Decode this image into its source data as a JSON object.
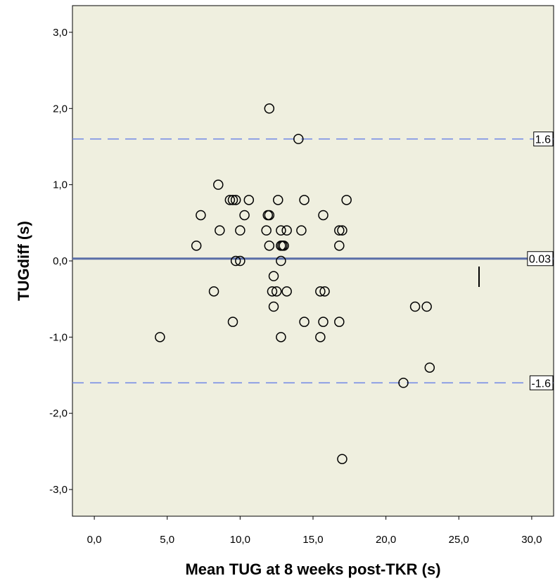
{
  "chart_data": {
    "type": "scatter",
    "title": "",
    "xlabel": "Mean TUG at 8 weeks post-TKR (s)",
    "ylabel": "TUGdiff (s)",
    "xlim": [
      -1.5,
      31.5
    ],
    "ylim": [
      -3.35,
      3.35
    ],
    "x_ticks": [
      0,
      5,
      10,
      15,
      20,
      25,
      30
    ],
    "x_tick_labels": [
      "0,0",
      "5,0",
      "10,0",
      "15,0",
      "20,0",
      "25,0",
      "30,0"
    ],
    "y_ticks": [
      3,
      2,
      1,
      0,
      -1,
      -2,
      -3
    ],
    "y_tick_labels": [
      "3,0",
      "2,0",
      "1,0",
      "0,0",
      "-1,0",
      "-2,0",
      "-3,0"
    ],
    "grid": false,
    "colors": {
      "plot_bg": "#efefdf",
      "mean_line": "#5a6ea8",
      "limit_line": "#6f86e6",
      "marker": "#000000"
    },
    "reference_lines": [
      {
        "name": "upper-limit",
        "y": 1.6,
        "label": "1.6",
        "style": "dashed"
      },
      {
        "name": "mean",
        "y": 0.03,
        "label": "0.03",
        "style": "solid"
      },
      {
        "name": "lower-limit",
        "y": -1.6,
        "label": "-1.6",
        "style": "dashed"
      }
    ],
    "points": [
      {
        "x": 12.0,
        "y": 2.0
      },
      {
        "x": 14.0,
        "y": 1.6
      },
      {
        "x": 8.5,
        "y": 1.0
      },
      {
        "x": 9.3,
        "y": 0.8
      },
      {
        "x": 9.5,
        "y": 0.8
      },
      {
        "x": 9.7,
        "y": 0.8
      },
      {
        "x": 10.6,
        "y": 0.8
      },
      {
        "x": 12.6,
        "y": 0.8
      },
      {
        "x": 14.4,
        "y": 0.8
      },
      {
        "x": 17.3,
        "y": 0.8
      },
      {
        "x": 7.3,
        "y": 0.6
      },
      {
        "x": 10.3,
        "y": 0.6
      },
      {
        "x": 11.9,
        "y": 0.6
      },
      {
        "x": 12.0,
        "y": 0.6
      },
      {
        "x": 15.7,
        "y": 0.6
      },
      {
        "x": 8.6,
        "y": 0.4
      },
      {
        "x": 10.0,
        "y": 0.4
      },
      {
        "x": 11.8,
        "y": 0.4
      },
      {
        "x": 12.8,
        "y": 0.4
      },
      {
        "x": 13.2,
        "y": 0.4
      },
      {
        "x": 14.2,
        "y": 0.4
      },
      {
        "x": 16.8,
        "y": 0.4
      },
      {
        "x": 17.0,
        "y": 0.4
      },
      {
        "x": 7.0,
        "y": 0.2
      },
      {
        "x": 12.0,
        "y": 0.2
      },
      {
        "x": 12.8,
        "y": 0.2
      },
      {
        "x": 12.9,
        "y": 0.2
      },
      {
        "x": 13.0,
        "y": 0.2
      },
      {
        "x": 16.8,
        "y": 0.2
      },
      {
        "x": 9.7,
        "y": 0.0
      },
      {
        "x": 10.0,
        "y": 0.0
      },
      {
        "x": 12.8,
        "y": 0.0
      },
      {
        "x": 12.3,
        "y": -0.2
      },
      {
        "x": 8.2,
        "y": -0.4
      },
      {
        "x": 12.2,
        "y": -0.4
      },
      {
        "x": 12.5,
        "y": -0.4
      },
      {
        "x": 13.2,
        "y": -0.4
      },
      {
        "x": 15.5,
        "y": -0.4
      },
      {
        "x": 15.8,
        "y": -0.4
      },
      {
        "x": 12.3,
        "y": -0.6
      },
      {
        "x": 22.0,
        "y": -0.6
      },
      {
        "x": 22.8,
        "y": -0.6
      },
      {
        "x": 9.5,
        "y": -0.8
      },
      {
        "x": 14.4,
        "y": -0.8
      },
      {
        "x": 15.7,
        "y": -0.8
      },
      {
        "x": 16.8,
        "y": -0.8
      },
      {
        "x": 4.5,
        "y": -1.0
      },
      {
        "x": 12.8,
        "y": -1.0
      },
      {
        "x": 15.5,
        "y": -1.0
      },
      {
        "x": 23.0,
        "y": -1.4
      },
      {
        "x": 21.2,
        "y": -1.6
      },
      {
        "x": 17.0,
        "y": -2.6
      }
    ]
  }
}
